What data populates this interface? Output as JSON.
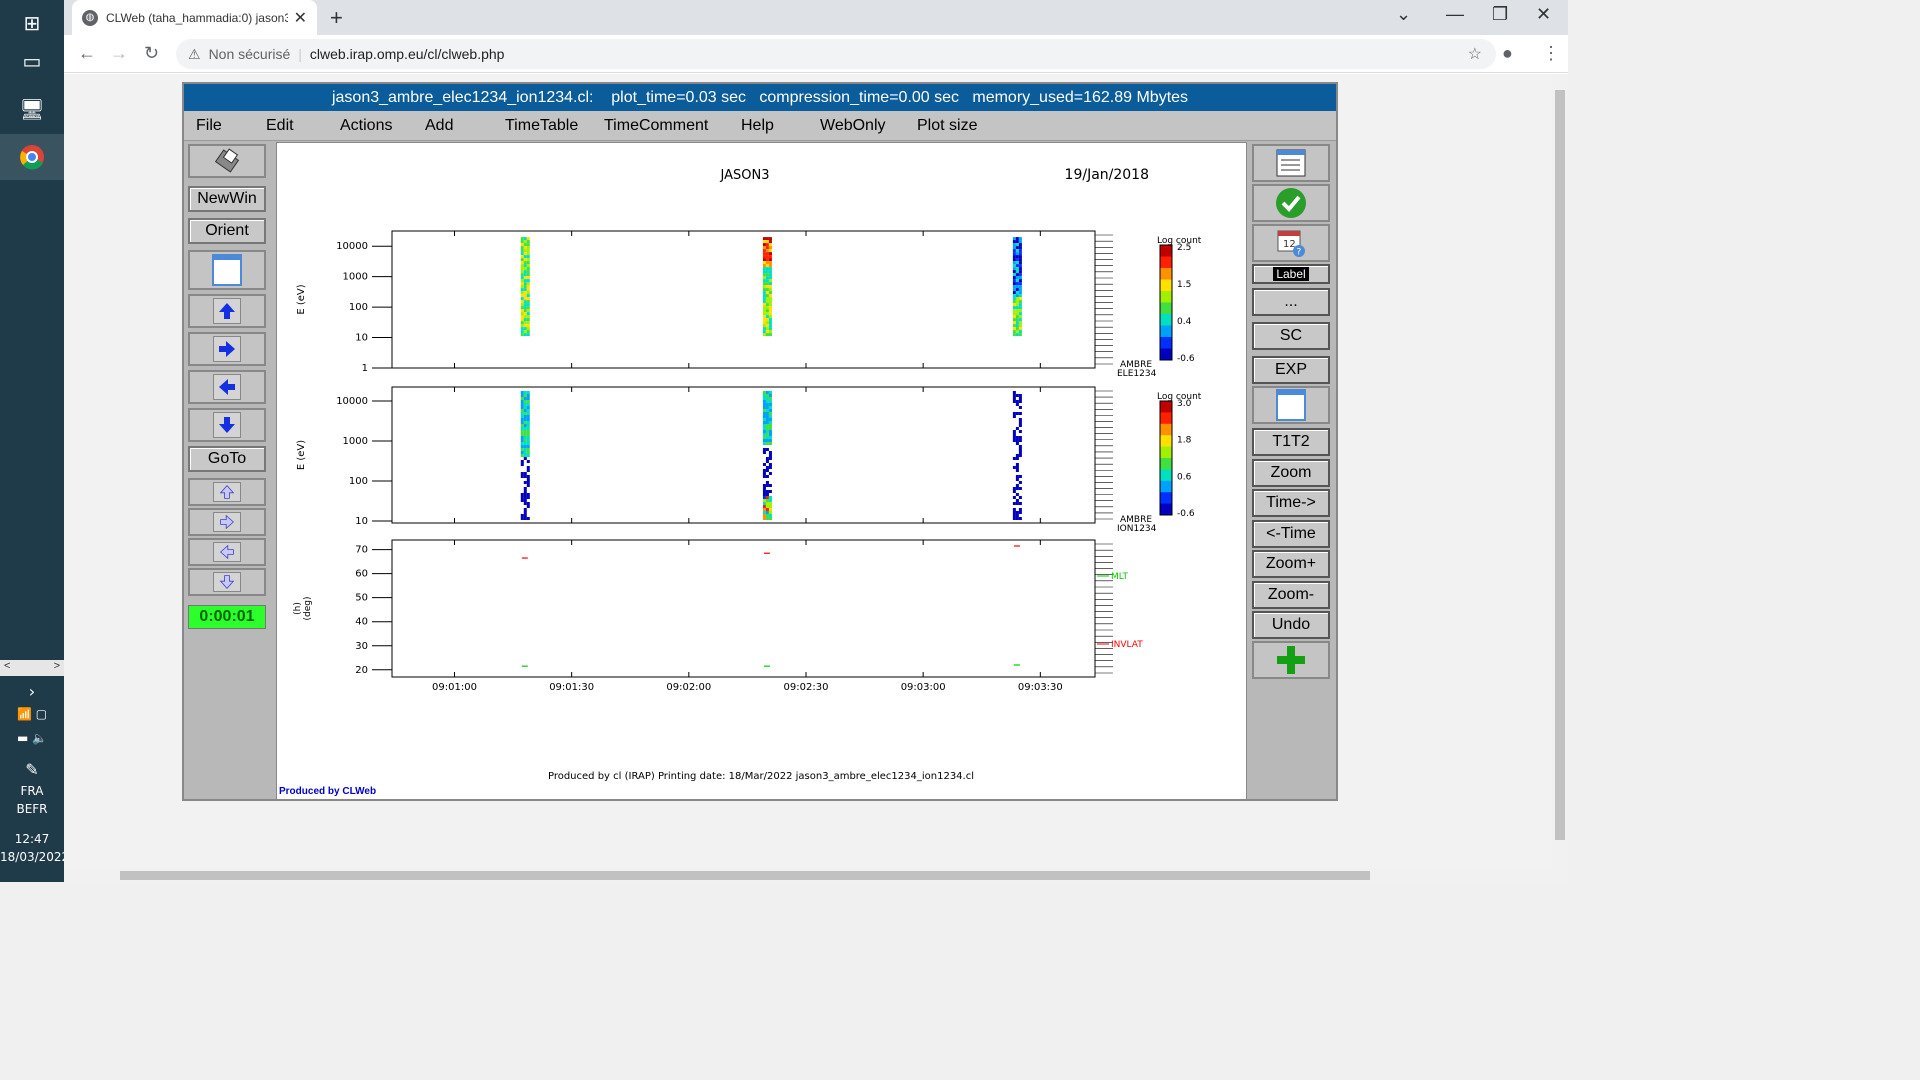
{
  "os": {
    "language": [
      "FRA",
      "BEFR"
    ],
    "time": "12:47",
    "date": "18/03/2022"
  },
  "browser": {
    "tab_title": "CLWeb (taha_hammadia:0) jason3...",
    "security_label": "Non sécurisé",
    "url": "clweb.irap.omp.eu/cl/clweb.php"
  },
  "clweb": {
    "title_file": "jason3_ambre_elec1234_ion1234.cl:",
    "title_stats": "plot_time=0.03 sec   compression_time=0.00 sec   memory_used=162.89 Mbytes",
    "menu": [
      "File",
      "Edit",
      "Actions",
      "Add",
      "TimeTable",
      "TimeComment",
      "Help",
      "WebOnly",
      "Plot size"
    ],
    "left_buttons": {
      "newwin": "NewWin",
      "orient": "Orient",
      "goto": "GoTo",
      "timer": "0:00:01"
    },
    "right_buttons": {
      "label": "Label",
      "more": "...",
      "sc": "SC",
      "exp": "EXP",
      "t1t2": "T1T2",
      "zoom": "Zoom",
      "time_fwd": "Time->",
      "time_back": "<-Time",
      "zoom_in": "Zoom+",
      "zoom_out": "Zoom-",
      "undo": "Undo"
    },
    "produced_by": "Produced by CLWeb"
  },
  "chart_data": {
    "type": "heatmap",
    "title": "JASON3",
    "date": "19/Jan/2018",
    "footer": "Produced by cl (IRAP)    Printing date: 18/Mar/2022    jason3_ambre_elec1234_ion1234.cl",
    "x_ticks": [
      "09:01:00",
      "09:01:30",
      "09:02:00",
      "09:02:30",
      "09:03:00",
      "09:03:30"
    ],
    "panels": [
      {
        "ylabel": "E (eV)",
        "y_ticks": [
          "10000",
          "1000",
          "100",
          "10",
          "1"
        ],
        "log_y": true,
        "label_lines": [
          "AMBRE",
          "ELE1234"
        ],
        "colorbar": {
          "title": "Log count",
          "ticks": [
            "2.5",
            "1.5",
            "0.4",
            "-0.6"
          ]
        },
        "spectra_times": [
          "09:01:18",
          "09:02:20",
          "09:03:24"
        ]
      },
      {
        "ylabel": "E (eV)",
        "y_ticks": [
          "10000",
          "1000",
          "100",
          "10"
        ],
        "log_y": true,
        "label_lines": [
          "AMBRE",
          "ION1234"
        ],
        "colorbar": {
          "title": "Log count",
          "ticks": [
            "3.0",
            "1.8",
            "0.6",
            "-0.6"
          ]
        },
        "spectra_times": [
          "09:01:18",
          "09:02:20",
          "09:03:24"
        ]
      },
      {
        "ylabel_lines": [
          "(h)",
          "(deg)"
        ],
        "y_ticks": [
          "70",
          "60",
          "50",
          "40",
          "30",
          "20"
        ],
        "ylim": [
          17,
          74
        ],
        "series": [
          {
            "name": "MLT",
            "color": "#00cc00",
            "x": [
              "09:01:18",
              "09:02:20",
              "09:03:24"
            ],
            "y": [
              21.5,
              21.5,
              22
            ]
          },
          {
            "name": "INVLAT",
            "color": "#ff0000",
            "x": [
              "09:01:18",
              "09:02:20",
              "09:03:24"
            ],
            "y": [
              66.5,
              68.5,
              71.5
            ]
          }
        ]
      }
    ]
  }
}
